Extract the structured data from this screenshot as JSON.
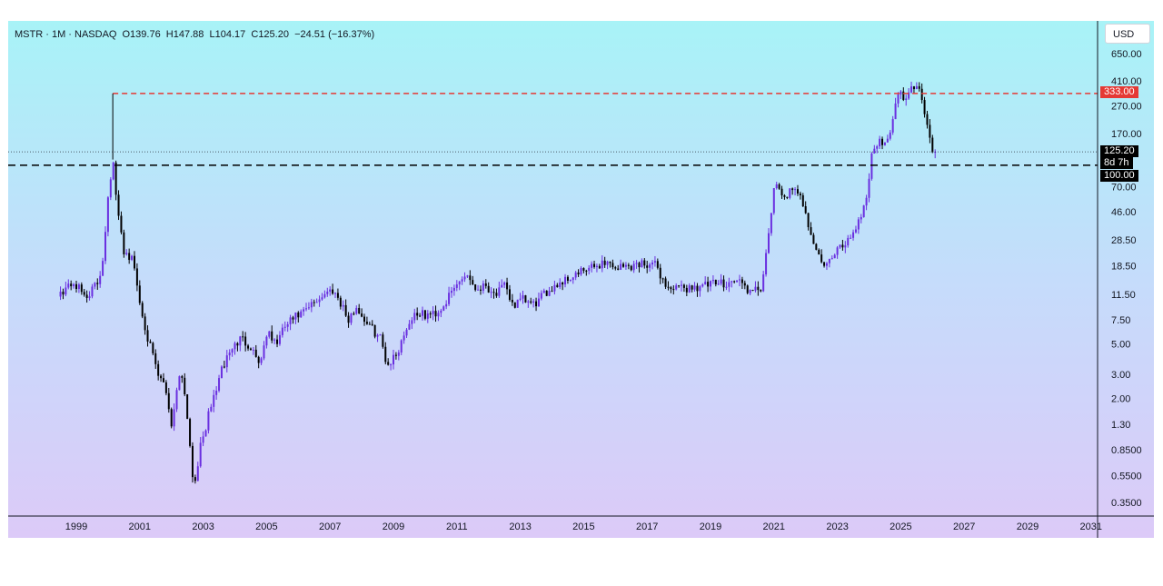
{
  "legend": {
    "symbol": "MSTR",
    "interval": "1M",
    "exchange": "NASDAQ",
    "separator": " · ",
    "ohlc_text": "O139.76  H147.88  L104.17  C125.20  −24.51 (−16.37%)"
  },
  "currency": "USD",
  "price_tags": {
    "resistance": "333.00",
    "last_price": "125.20",
    "countdown": "8d 7h",
    "support": "100.00"
  },
  "colors": {
    "up": "#6a2fe0",
    "down": "#000000",
    "resistance_line": "#e53935",
    "support_line": "#000000",
    "last_price_line": "#2a2e39"
  },
  "chart_data": {
    "type": "candlestick",
    "title": "MSTR · 1M · NASDAQ",
    "y_scale": "log",
    "ylim": [
      0.3,
      800
    ],
    "y_ticks": [
      "650.00",
      "410.00",
      "270.00",
      "170.00",
      "70.00",
      "46.00",
      "28.50",
      "18.50",
      "11.50",
      "7.50",
      "5.00",
      "3.00",
      "2.00",
      "1.30",
      "0.8500",
      "0.5500",
      "0.3500"
    ],
    "x_ticks": [
      "1999",
      "2001",
      "2003",
      "2005",
      "2007",
      "2009",
      "2011",
      "2013",
      "2015",
      "2017",
      "2019",
      "2021",
      "2023",
      "2025",
      "2027",
      "2029",
      "2031"
    ],
    "horizontal_lines": [
      {
        "value": 333.0,
        "style": "dashed",
        "color": "red"
      },
      {
        "value": 100.0,
        "style": "dashed",
        "color": "black"
      },
      {
        "value": 125.2,
        "style": "dotted",
        "color": "dark"
      }
    ],
    "close_anchors": [
      [
        1998.5,
        12
      ],
      [
        1998.9,
        14
      ],
      [
        1999.3,
        11
      ],
      [
        1999.7,
        14
      ],
      [
        1999.85,
        22
      ],
      [
        2000.0,
        60
      ],
      [
        2000.15,
        110
      ],
      [
        2000.3,
        45
      ],
      [
        2000.5,
        24
      ],
      [
        2000.8,
        20
      ],
      [
        2001.0,
        10
      ],
      [
        2001.3,
        5
      ],
      [
        2001.6,
        2.8
      ],
      [
        2001.8,
        2.5
      ],
      [
        2002.0,
        1.3
      ],
      [
        2002.3,
        3.5
      ],
      [
        2002.5,
        1.5
      ],
      [
        2002.7,
        0.45
      ],
      [
        2002.9,
        0.85
      ],
      [
        2003.2,
        1.6
      ],
      [
        2003.5,
        2.8
      ],
      [
        2003.8,
        4.3
      ],
      [
        2004.2,
        5.5
      ],
      [
        2004.5,
        4.8
      ],
      [
        2004.8,
        3.6
      ],
      [
        2005.0,
        6.0
      ],
      [
        2005.3,
        5.0
      ],
      [
        2005.6,
        6.8
      ],
      [
        2005.9,
        7.8
      ],
      [
        2006.2,
        8.5
      ],
      [
        2006.5,
        10.0
      ],
      [
        2006.8,
        11.5
      ],
      [
        2007.1,
        12.5
      ],
      [
        2007.4,
        9.5
      ],
      [
        2007.6,
        7.0
      ],
      [
        2007.8,
        9.5
      ],
      [
        2008.0,
        8.0
      ],
      [
        2008.3,
        6.5
      ],
      [
        2008.6,
        5.5
      ],
      [
        2008.8,
        3.5
      ],
      [
        2009.1,
        4.2
      ],
      [
        2009.4,
        6.5
      ],
      [
        2009.7,
        8.5
      ],
      [
        2010.0,
        8.0
      ],
      [
        2010.4,
        8.5
      ],
      [
        2010.7,
        10.5
      ],
      [
        2011.0,
        13.5
      ],
      [
        2011.3,
        16.5
      ],
      [
        2011.6,
        12.5
      ],
      [
        2011.9,
        13.5
      ],
      [
        2012.2,
        11.5
      ],
      [
        2012.5,
        13.0
      ],
      [
        2012.8,
        9.5
      ],
      [
        2013.1,
        10.5
      ],
      [
        2013.4,
        9.5
      ],
      [
        2013.7,
        11.0
      ],
      [
        2014.0,
        13.0
      ],
      [
        2014.5,
        15.0
      ],
      [
        2014.9,
        16.5
      ],
      [
        2015.3,
        18.0
      ],
      [
        2015.7,
        20.0
      ],
      [
        2016.0,
        18.0
      ],
      [
        2016.5,
        18.5
      ],
      [
        2016.9,
        19.5
      ],
      [
        2017.3,
        18.5
      ],
      [
        2017.6,
        13.0
      ],
      [
        2018.0,
        12.5
      ],
      [
        2018.5,
        13.0
      ],
      [
        2019.0,
        13.5
      ],
      [
        2019.5,
        14.0
      ],
      [
        2019.9,
        14.5
      ],
      [
        2020.3,
        11.5
      ],
      [
        2020.6,
        13.0
      ],
      [
        2020.8,
        25.0
      ],
      [
        2021.0,
        70.0
      ],
      [
        2021.3,
        60.0
      ],
      [
        2021.6,
        65.0
      ],
      [
        2021.9,
        55.0
      ],
      [
        2022.2,
        30.0
      ],
      [
        2022.5,
        19.0
      ],
      [
        2022.8,
        20.0
      ],
      [
        2023.0,
        24.0
      ],
      [
        2023.3,
        28.0
      ],
      [
        2023.6,
        36.0
      ],
      [
        2023.9,
        55.0
      ],
      [
        2024.1,
        130.0
      ],
      [
        2024.4,
        150.0
      ],
      [
        2024.7,
        170.0
      ],
      [
        2024.9,
        360.0
      ],
      [
        2025.1,
        300.0
      ],
      [
        2025.3,
        380.0
      ],
      [
        2025.5,
        390.0
      ],
      [
        2025.7,
        300.0
      ],
      [
        2025.85,
        180.0
      ],
      [
        2025.95,
        140.0
      ],
      [
        2026.05,
        125.2
      ]
    ]
  }
}
